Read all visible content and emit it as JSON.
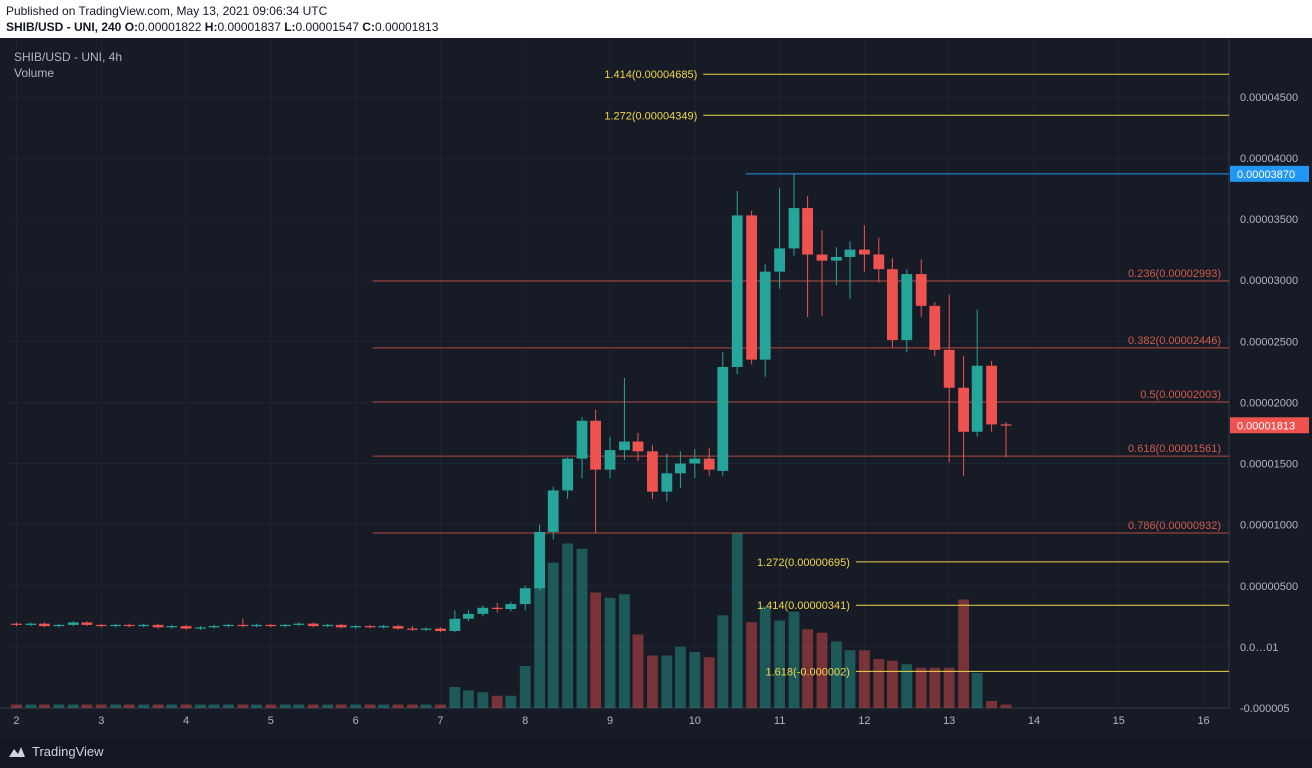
{
  "header": {
    "published": "Published on TradingView.com, May 13, 2021 09:06:34 UTC",
    "symbol_interval": "SHIB/USD - UNI, 240",
    "o_label": "O:",
    "o_value": "0.00001822",
    "h_label": "H:",
    "h_value": "0.00001837",
    "l_label": "L:",
    "l_value": "0.00001547",
    "c_label": "C:",
    "c_value": "0.00001813"
  },
  "legend": {
    "title": "SHIB/USD - UNI, 4h",
    "volume": "Volume"
  },
  "footer": {
    "brand": "TradingView"
  },
  "colors": {
    "up": "#26a69a",
    "down": "#ef5350",
    "fib_upper": "#f0d64d",
    "fib_retrace": "#b24a3c",
    "high_line": "#2196f3",
    "price_tag": "#ef5350"
  },
  "chart_data": {
    "type": "candlestick",
    "title": "SHIB/USD - UNI, 4h",
    "ylim": [
      -5e-06,
      4.965e-05
    ],
    "xlim": [
      1.9,
      16.3
    ],
    "x_ticks": [
      "2",
      "3",
      "4",
      "5",
      "6",
      "7",
      "8",
      "9",
      "10",
      "11",
      "12",
      "13",
      "14",
      "15",
      "16"
    ],
    "y_ticks": [
      "0.00004500",
      "0.00004000",
      "0.00003500",
      "0.00003000",
      "0.00002500",
      "0.00002000",
      "0.00001500",
      "0.00001000",
      "0.00000500",
      "0.0…01",
      "-0.000005"
    ],
    "high_price_label": "0.00003870",
    "high_price": 3.87e-05,
    "last_price_label": "0.00001813",
    "last_price": 1.813e-05,
    "fib_extensions": [
      {
        "label": "1.414(0.00004685)",
        "value": 4.685e-05
      },
      {
        "label": "1.272(0.00004349)",
        "value": 4.349e-05
      },
      {
        "label": "1.272(0.00000695)",
        "value": 6.95e-06
      },
      {
        "label": "1.414(0.00000341)",
        "value": 3.41e-06
      },
      {
        "label": "1.618(-0.000002)",
        "value": -2e-06
      }
    ],
    "fib_retracements": [
      {
        "label": "0.236(0.00002993)",
        "value": 2.993e-05
      },
      {
        "label": "0.382(0.00002446)",
        "value": 2.446e-05
      },
      {
        "label": "0.5(0.00002003)",
        "value": 2.003e-05
      },
      {
        "label": "0.618(0.00001561)",
        "value": 1.561e-05
      },
      {
        "label": "0.786(0.00000932)",
        "value": 9.32e-06
      }
    ],
    "candles": [
      {
        "x": 2.0,
        "o": 1.9e-06,
        "h": 2e-06,
        "l": 1.7e-06,
        "c": 1.8e-06
      },
      {
        "x": 2.17,
        "o": 1.8e-06,
        "h": 2e-06,
        "l": 1.7e-06,
        "c": 1.9e-06
      },
      {
        "x": 2.33,
        "o": 1.9e-06,
        "h": 2e-06,
        "l": 1.6e-06,
        "c": 1.7e-06
      },
      {
        "x": 2.5,
        "o": 1.7e-06,
        "h": 1.9e-06,
        "l": 1.6e-06,
        "c": 1.8e-06
      },
      {
        "x": 2.67,
        "o": 1.8e-06,
        "h": 2.1e-06,
        "l": 1.7e-06,
        "c": 2e-06
      },
      {
        "x": 2.83,
        "o": 2e-06,
        "h": 2.1e-06,
        "l": 1.7e-06,
        "c": 1.8e-06
      },
      {
        "x": 3.0,
        "o": 1.8e-06,
        "h": 1.9e-06,
        "l": 1.6e-06,
        "c": 1.7e-06
      },
      {
        "x": 3.17,
        "o": 1.7e-06,
        "h": 1.9e-06,
        "l": 1.6e-06,
        "c": 1.8e-06
      },
      {
        "x": 3.33,
        "o": 1.8e-06,
        "h": 1.9e-06,
        "l": 1.6e-06,
        "c": 1.7e-06
      },
      {
        "x": 3.5,
        "o": 1.7e-06,
        "h": 1.9e-06,
        "l": 1.6e-06,
        "c": 1.8e-06
      },
      {
        "x": 3.67,
        "o": 1.8e-06,
        "h": 1.9e-06,
        "l": 1.5e-06,
        "c": 1.6e-06
      },
      {
        "x": 3.83,
        "o": 1.6e-06,
        "h": 1.8e-06,
        "l": 1.5e-06,
        "c": 1.7e-06
      },
      {
        "x": 4.0,
        "o": 1.7e-06,
        "h": 1.8e-06,
        "l": 1.4e-06,
        "c": 1.5e-06
      },
      {
        "x": 4.17,
        "o": 1.5e-06,
        "h": 1.7e-06,
        "l": 1.4e-06,
        "c": 1.6e-06
      },
      {
        "x": 4.33,
        "o": 1.6e-06,
        "h": 1.8e-06,
        "l": 1.5e-06,
        "c": 1.7e-06
      },
      {
        "x": 4.5,
        "o": 1.7e-06,
        "h": 1.9e-06,
        "l": 1.6e-06,
        "c": 1.8e-06
      },
      {
        "x": 4.67,
        "o": 1.8e-06,
        "h": 2.3e-06,
        "l": 1.6e-06,
        "c": 1.7e-06
      },
      {
        "x": 4.83,
        "o": 1.7e-06,
        "h": 1.9e-06,
        "l": 1.6e-06,
        "c": 1.8e-06
      },
      {
        "x": 5.0,
        "o": 1.8e-06,
        "h": 1.9e-06,
        "l": 1.6e-06,
        "c": 1.7e-06
      },
      {
        "x": 5.17,
        "o": 1.7e-06,
        "h": 1.9e-06,
        "l": 1.6e-06,
        "c": 1.8e-06
      },
      {
        "x": 5.33,
        "o": 1.8e-06,
        "h": 2e-06,
        "l": 1.7e-06,
        "c": 1.9e-06
      },
      {
        "x": 5.5,
        "o": 1.9e-06,
        "h": 2e-06,
        "l": 1.6e-06,
        "c": 1.7e-06
      },
      {
        "x": 5.67,
        "o": 1.7e-06,
        "h": 1.9e-06,
        "l": 1.6e-06,
        "c": 1.8e-06
      },
      {
        "x": 5.83,
        "o": 1.8e-06,
        "h": 1.9e-06,
        "l": 1.5e-06,
        "c": 1.6e-06
      },
      {
        "x": 6.0,
        "o": 1.6e-06,
        "h": 1.8e-06,
        "l": 1.5e-06,
        "c": 1.7e-06
      },
      {
        "x": 6.17,
        "o": 1.7e-06,
        "h": 1.8e-06,
        "l": 1.5e-06,
        "c": 1.6e-06
      },
      {
        "x": 6.33,
        "o": 1.6e-06,
        "h": 1.8e-06,
        "l": 1.5e-06,
        "c": 1.7e-06
      },
      {
        "x": 6.5,
        "o": 1.7e-06,
        "h": 1.8e-06,
        "l": 1.4e-06,
        "c": 1.5e-06
      },
      {
        "x": 6.67,
        "o": 1.5e-06,
        "h": 1.7e-06,
        "l": 1.3e-06,
        "c": 1.4e-06
      },
      {
        "x": 6.83,
        "o": 1.4e-06,
        "h": 1.6e-06,
        "l": 1.3e-06,
        "c": 1.5e-06
      },
      {
        "x": 7.0,
        "o": 1.5e-06,
        "h": 1.6e-06,
        "l": 1.2e-06,
        "c": 1.3e-06
      },
      {
        "x": 7.17,
        "o": 1.3e-06,
        "h": 3e-06,
        "l": 1.2e-06,
        "c": 2.3e-06
      },
      {
        "x": 7.33,
        "o": 2.3e-06,
        "h": 3e-06,
        "l": 2.1e-06,
        "c": 2.7e-06
      },
      {
        "x": 7.5,
        "o": 2.7e-06,
        "h": 3.4e-06,
        "l": 2.5e-06,
        "c": 3.2e-06
      },
      {
        "x": 7.67,
        "o": 3.2e-06,
        "h": 3.6e-06,
        "l": 2.8e-06,
        "c": 3.1e-06
      },
      {
        "x": 7.83,
        "o": 3.1e-06,
        "h": 3.7e-06,
        "l": 2.9e-06,
        "c": 3.5e-06
      },
      {
        "x": 8.0,
        "o": 3.5e-06,
        "h": 5e-06,
        "l": 3e-06,
        "c": 4.8e-06
      },
      {
        "x": 8.17,
        "o": 4.8e-06,
        "h": 1e-05,
        "l": 4.6e-06,
        "c": 9.4e-06
      },
      {
        "x": 8.33,
        "o": 9.4e-06,
        "h": 1.31e-05,
        "l": 8.8e-06,
        "c": 1.28e-05
      },
      {
        "x": 8.5,
        "o": 1.28e-05,
        "h": 1.55e-05,
        "l": 1.21e-05,
        "c": 1.54e-05
      },
      {
        "x": 8.67,
        "o": 1.54e-05,
        "h": 1.88e-05,
        "l": 1.38e-05,
        "c": 1.85e-05
      },
      {
        "x": 8.83,
        "o": 1.85e-05,
        "h": 1.94e-05,
        "l": 9.3e-06,
        "c": 1.45e-05
      },
      {
        "x": 9.0,
        "o": 1.45e-05,
        "h": 1.72e-05,
        "l": 1.38e-05,
        "c": 1.61e-05
      },
      {
        "x": 9.17,
        "o": 1.61e-05,
        "h": 2.2e-05,
        "l": 1.53e-05,
        "c": 1.68e-05
      },
      {
        "x": 9.33,
        "o": 1.68e-05,
        "h": 1.75e-05,
        "l": 1.52e-05,
        "c": 1.6e-05
      },
      {
        "x": 9.5,
        "o": 1.6e-05,
        "h": 1.65e-05,
        "l": 1.21e-05,
        "c": 1.27e-05
      },
      {
        "x": 9.67,
        "o": 1.27e-05,
        "h": 1.58e-05,
        "l": 1.19e-05,
        "c": 1.42e-05
      },
      {
        "x": 9.83,
        "o": 1.42e-05,
        "h": 1.6e-05,
        "l": 1.3e-05,
        "c": 1.5e-05
      },
      {
        "x": 10.0,
        "o": 1.5e-05,
        "h": 1.62e-05,
        "l": 1.38e-05,
        "c": 1.54e-05
      },
      {
        "x": 10.17,
        "o": 1.54e-05,
        "h": 1.63e-05,
        "l": 1.4e-05,
        "c": 1.45e-05
      },
      {
        "x": 10.33,
        "o": 1.44e-05,
        "h": 2.41e-05,
        "l": 1.4e-05,
        "c": 2.29e-05
      },
      {
        "x": 10.5,
        "o": 2.29e-05,
        "h": 3.73e-05,
        "l": 2.23e-05,
        "c": 3.53e-05
      },
      {
        "x": 10.67,
        "o": 3.53e-05,
        "h": 3.57e-05,
        "l": 2.31e-05,
        "c": 2.35e-05
      },
      {
        "x": 10.83,
        "o": 2.35e-05,
        "h": 3.13e-05,
        "l": 2.21e-05,
        "c": 3.07e-05
      },
      {
        "x": 11.0,
        "o": 3.07e-05,
        "h": 3.75e-05,
        "l": 2.93e-05,
        "c": 3.26e-05
      },
      {
        "x": 11.17,
        "o": 3.26e-05,
        "h": 3.87e-05,
        "l": 3.2e-05,
        "c": 3.59e-05
      },
      {
        "x": 11.33,
        "o": 3.59e-05,
        "h": 3.69e-05,
        "l": 2.7e-05,
        "c": 3.21e-05
      },
      {
        "x": 11.5,
        "o": 3.21e-05,
        "h": 3.41e-05,
        "l": 2.71e-05,
        "c": 3.16e-05
      },
      {
        "x": 11.67,
        "o": 3.16e-05,
        "h": 3.27e-05,
        "l": 2.96e-05,
        "c": 3.19e-05
      },
      {
        "x": 11.83,
        "o": 3.19e-05,
        "h": 3.32e-05,
        "l": 2.85e-05,
        "c": 3.25e-05
      },
      {
        "x": 12.0,
        "o": 3.25e-05,
        "h": 3.45e-05,
        "l": 3.07e-05,
        "c": 3.21e-05
      },
      {
        "x": 12.17,
        "o": 3.21e-05,
        "h": 3.35e-05,
        "l": 2.98e-05,
        "c": 3.09e-05
      },
      {
        "x": 12.33,
        "o": 3.09e-05,
        "h": 3.18e-05,
        "l": 2.45e-05,
        "c": 2.51e-05
      },
      {
        "x": 12.5,
        "o": 2.51e-05,
        "h": 3.09e-05,
        "l": 2.41e-05,
        "c": 3.05e-05
      },
      {
        "x": 12.67,
        "o": 3.05e-05,
        "h": 3.17e-05,
        "l": 2.7e-05,
        "c": 2.79e-05
      },
      {
        "x": 12.83,
        "o": 2.79e-05,
        "h": 2.82e-05,
        "l": 2.38e-05,
        "c": 2.43e-05
      },
      {
        "x": 13.0,
        "o": 2.43e-05,
        "h": 2.88e-05,
        "l": 1.51e-05,
        "c": 2.12e-05
      },
      {
        "x": 13.17,
        "o": 2.12e-05,
        "h": 2.38e-05,
        "l": 1.4e-05,
        "c": 1.76e-05
      },
      {
        "x": 13.33,
        "o": 1.76e-05,
        "h": 2.76e-05,
        "l": 1.72e-05,
        "c": 2.3e-05
      },
      {
        "x": 13.5,
        "o": 2.3e-05,
        "h": 2.34e-05,
        "l": 1.76e-05,
        "c": 1.82e-05
      },
      {
        "x": 13.67,
        "o": 1.82e-05,
        "h": 1.84e-05,
        "l": 1.55e-05,
        "c": 1.81e-05
      }
    ],
    "volume": [
      2,
      2,
      2,
      2,
      2,
      2,
      2,
      2,
      2,
      2,
      2,
      2,
      2,
      2,
      2,
      2,
      2,
      2,
      2,
      2,
      2,
      2,
      2,
      2,
      2,
      2,
      2,
      2,
      2,
      2,
      2,
      12,
      10,
      9,
      7,
      7,
      24,
      80,
      83,
      94,
      91,
      66,
      63,
      65,
      42,
      30,
      30,
      35,
      32,
      29,
      53,
      100,
      49,
      58,
      50,
      55,
      45,
      43,
      38,
      33,
      33,
      28,
      27,
      25,
      23,
      23,
      23,
      62,
      20,
      4,
      2
    ]
  }
}
